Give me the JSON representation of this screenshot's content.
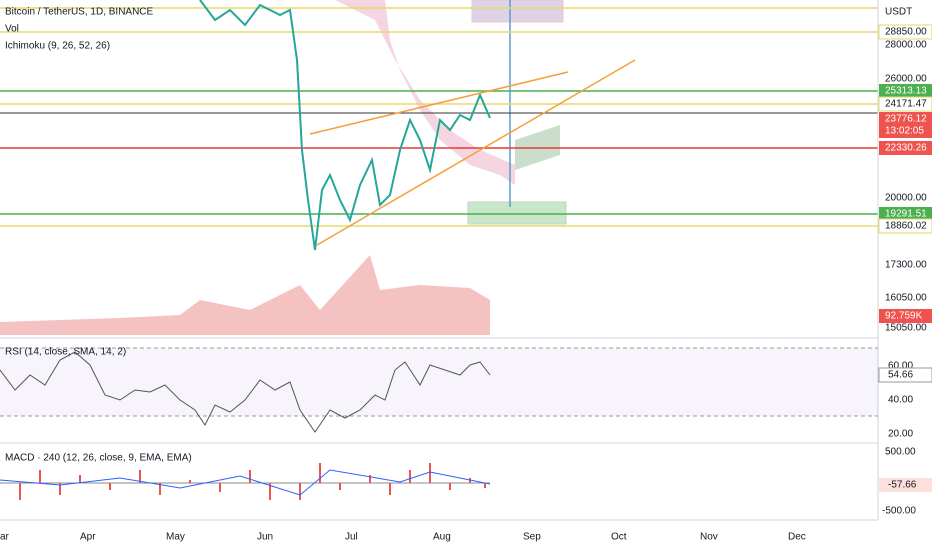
{
  "header": {
    "symbol": "Bitcoin / TetherUS, 1D, BINANCE",
    "volume": "Vol",
    "indicator": "Ichimoku (9, 26, 52, 26)"
  },
  "price_axis": {
    "currency": "USDT",
    "ticks": [
      "28000.00",
      "26000.00",
      "20000.00",
      "17300.00",
      "16050.00",
      "15050.00"
    ],
    "levels": [
      "28850.00",
      "25313.13",
      "24171.47",
      "22330.26",
      "19291.51",
      "18860.02"
    ],
    "last_price": "23776.12",
    "countdown": "13:02:05",
    "volume_value": "92.759K"
  },
  "rsi": {
    "label": "RSI (14, close, SMA, 14, 2)",
    "ticks": [
      "60.00",
      "40.00",
      "20.00"
    ],
    "value": "54.66"
  },
  "macd": {
    "label": "MACD · 240 (12, 26, close, 9, EMA, EMA)",
    "ticks": [
      "500.00",
      "-500.00"
    ],
    "value": "-57.66"
  },
  "time_axis": [
    "ar",
    "Apr",
    "May",
    "Jun",
    "Jul",
    "Aug",
    "Sep",
    "Oct",
    "Nov",
    "Dec"
  ]
}
